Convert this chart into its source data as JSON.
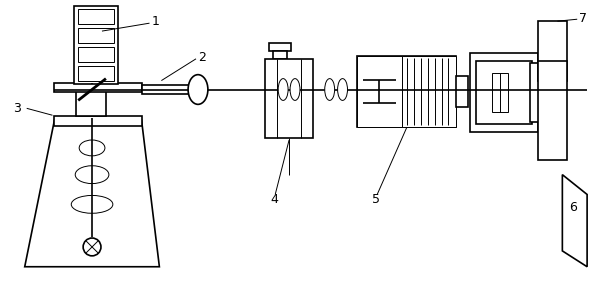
{
  "bg_color": "#ffffff",
  "lw": 1.2,
  "lw_thin": 0.7,
  "lc": "#000000"
}
